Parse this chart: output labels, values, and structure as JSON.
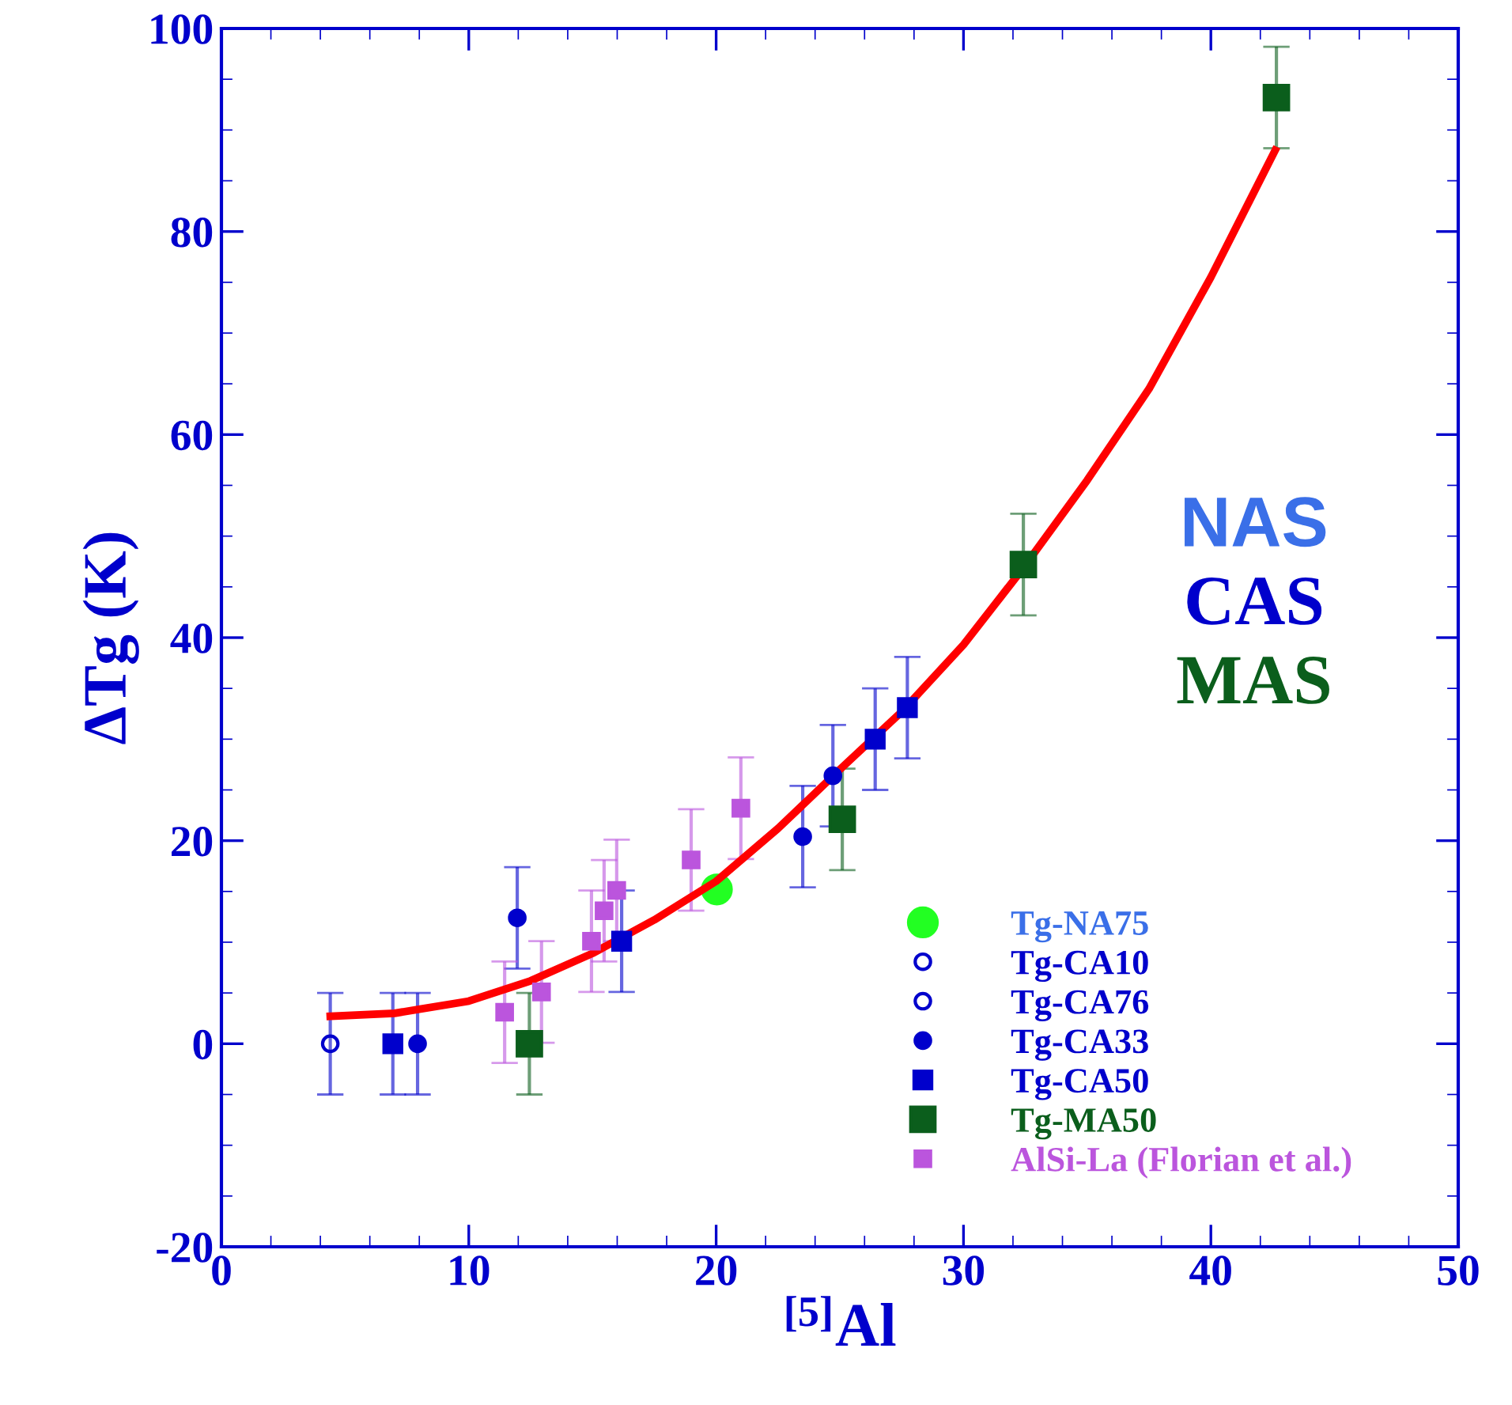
{
  "chart_data": {
    "type": "scatter",
    "xlabel": "$^{[5]}$Al",
    "ylabel": "ΔTg (K)",
    "xlim": [
      0,
      50
    ],
    "xticks": [
      0,
      10,
      20,
      30,
      40,
      50
    ],
    "ylim": [
      -20,
      100
    ],
    "yticks": [
      -20,
      0,
      20,
      40,
      60,
      80,
      100
    ],
    "grid": false,
    "legend": "bottom right",
    "annotations": [
      "NAS",
      "CAS",
      "MAS"
    ],
    "series": [
      {
        "type": "line",
        "color": "#ff0000",
        "marker": "none",
        "line_style": "solid",
        "x": [
          4.4,
          7,
          10,
          12.5,
          15,
          17.5,
          20,
          22.5,
          25,
          27.5,
          30,
          32.4,
          35,
          37.5,
          40,
          42.6
        ],
        "values": [
          2.7,
          3.0,
          4.2,
          6.2,
          8.9,
          12.2,
          16.0,
          21.2,
          27.0,
          32.7,
          39.3,
          46.8,
          55.5,
          64.5,
          75.5,
          88
        ]
      },
      {
        "name": "Tg-NA75",
        "color": "#22ff22",
        "marker": "circle",
        "x": [
          20.03
        ],
        "values": [
          15.2
        ]
      },
      {
        "name": "Tg-CA10",
        "color": "#0000cc",
        "marker": "circle",
        "x": [
          4.4
        ],
        "values": [
          0
        ],
        "errors": [
          5
        ]
      },
      {
        "name": "Tg-CA76",
        "color": "#0000cc",
        "marker": "circle"
      },
      {
        "name": "Tg-CA33",
        "color": "#0000cc",
        "marker": "circle",
        "x": [
          7.93,
          11.96,
          23.5,
          24.72
        ],
        "values": [
          0,
          12.4,
          20.4,
          26.4
        ],
        "errors": [
          5,
          5,
          5,
          5
        ]
      },
      {
        "name": "Tg-CA50",
        "color": "#0000cc",
        "marker": "square",
        "x": [
          6.93,
          16.18,
          26.43,
          27.73
        ],
        "values": [
          0,
          10.1,
          30.0,
          33.1
        ],
        "errors": [
          5,
          5,
          5,
          5
        ]
      },
      {
        "name": "Tg-MA50",
        "color": "#0b5e1c",
        "marker": "square",
        "x": [
          12.45,
          25.1,
          32.42,
          42.65
        ],
        "values": [
          0,
          22.1,
          47.2,
          93.2
        ],
        "errors": [
          5,
          5,
          5,
          5
        ]
      },
      {
        "name": "AlSi-La (Florian et al.)",
        "color": "#bb55dd",
        "marker": "square",
        "x": [
          11.45,
          12.94,
          14.96,
          15.47,
          15.98,
          18.99,
          21.0
        ],
        "values": [
          3.1,
          5.1,
          10.1,
          13.1,
          15.1,
          18.1,
          23.2
        ],
        "errors": [
          5,
          5,
          5,
          5,
          5,
          5,
          5
        ]
      }
    ]
  }
}
